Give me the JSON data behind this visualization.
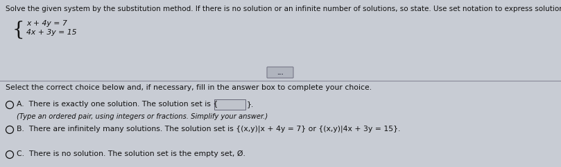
{
  "bg_color": "#c8ccd4",
  "bg_color2": "#b8bcc6",
  "text_color": "#111111",
  "title_text": "Solve the given system by the substitution method. If there is no solution or an infinite number of solutions, so state. Use set notation to express solution sets.",
  "eq1": "x + 4y = 7",
  "eq2": "4x + 3y = 15",
  "instruction": "Select the correct choice below and, if necessary, fill in the answer box to complete your choice.",
  "choice_A_line1": "A.  There is exactly one solution. The solution set is {",
  "choice_A_line1b": "}.",
  "choice_A_sub": "(Type an ordered pair, using integers or fractions. Simplify your answer.)",
  "choice_B": "B.  There are infinitely many solutions. The solution set is {(x,y)|x + 4y = 7} or {(x,y)|4x + 3y = 15}.",
  "choice_C": "C.  There is no solution. The solution set is the empty set, Ø.",
  "dots_text": "...",
  "title_fontsize": 7.5,
  "body_fontsize": 7.8,
  "small_fontsize": 7.2
}
